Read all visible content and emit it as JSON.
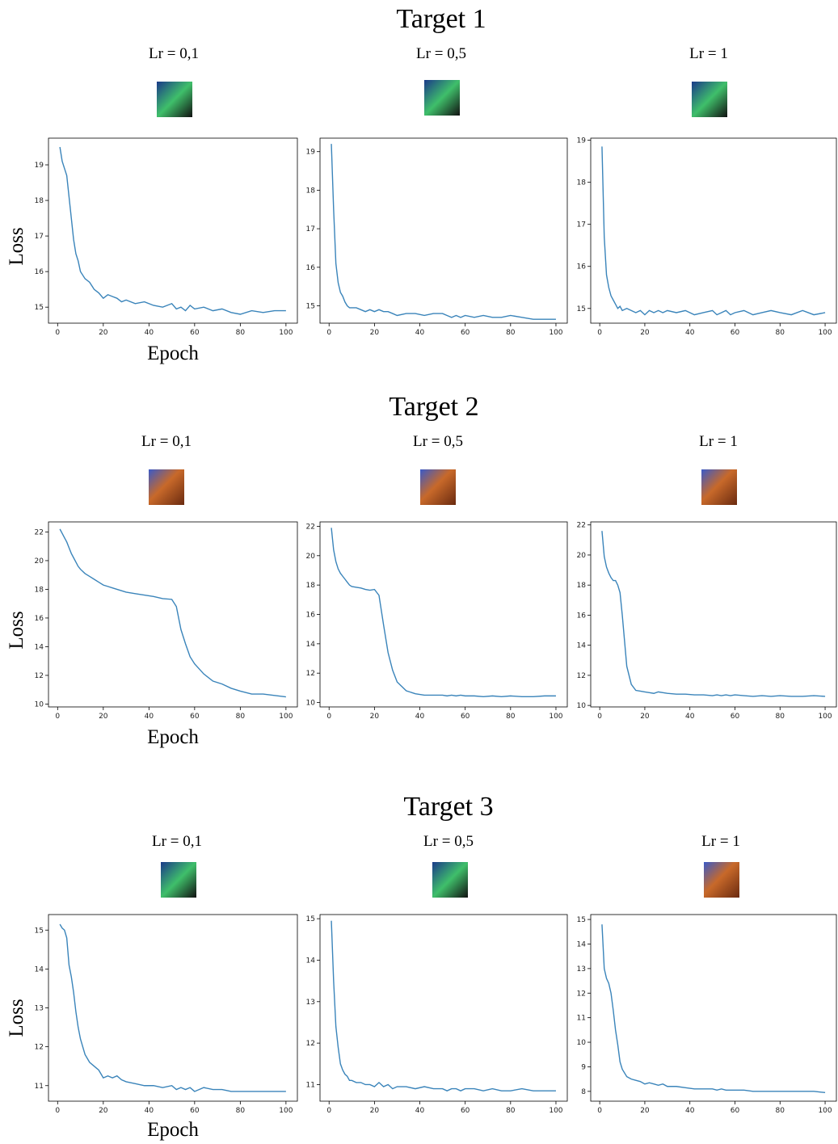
{
  "targets": [
    "Target 1",
    "Target 2",
    "Target 3"
  ],
  "chart_data": [
    {
      "type": "line",
      "title": "Lr = 0,1",
      "xlabel": "Epoch",
      "ylabel": "Loss",
      "xlim": [
        -4,
        105
      ],
      "xticks": [
        0,
        20,
        40,
        60,
        80,
        100
      ],
      "ylim": [
        14.55,
        19.75
      ],
      "yticks": [
        15,
        16,
        17,
        18,
        19
      ],
      "x": [
        1,
        2,
        3,
        4,
        5,
        6,
        7,
        8,
        9,
        10,
        12,
        14,
        16,
        18,
        20,
        22,
        24,
        26,
        28,
        30,
        34,
        38,
        42,
        46,
        50,
        52,
        54,
        56,
        58,
        60,
        64,
        68,
        72,
        76,
        80,
        85,
        90,
        95,
        100
      ],
      "series": [
        {
          "color": "#3a84ba",
          "values": [
            19.5,
            19.1,
            18.9,
            18.7,
            18.1,
            17.5,
            16.9,
            16.5,
            16.3,
            16.0,
            15.8,
            15.7,
            15.5,
            15.4,
            15.25,
            15.35,
            15.3,
            15.25,
            15.15,
            15.2,
            15.1,
            15.15,
            15.05,
            15.0,
            15.1,
            14.95,
            15.0,
            14.9,
            15.05,
            14.95,
            15.0,
            14.9,
            14.95,
            14.85,
            14.8,
            14.9,
            14.85,
            14.9,
            14.9
          ]
        }
      ]
    },
    {
      "type": "line",
      "title": "Lr = 0,5",
      "xlim": [
        -4,
        105
      ],
      "xticks": [
        0,
        20,
        40,
        60,
        80,
        100
      ],
      "ylim": [
        14.55,
        19.35
      ],
      "yticks": [
        15,
        16,
        17,
        18,
        19
      ],
      "x": [
        1,
        2,
        3,
        4,
        5,
        6,
        7,
        8,
        9,
        10,
        12,
        14,
        16,
        18,
        20,
        22,
        24,
        26,
        28,
        30,
        34,
        38,
        42,
        46,
        50,
        52,
        54,
        56,
        58,
        60,
        64,
        68,
        72,
        76,
        80,
        85,
        90,
        95,
        100
      ],
      "series": [
        {
          "color": "#3a84ba",
          "values": [
            19.2,
            17.5,
            16.1,
            15.6,
            15.35,
            15.25,
            15.1,
            15.0,
            14.95,
            14.95,
            14.95,
            14.9,
            14.85,
            14.9,
            14.85,
            14.9,
            14.85,
            14.85,
            14.8,
            14.75,
            14.8,
            14.8,
            14.75,
            14.8,
            14.8,
            14.75,
            14.7,
            14.75,
            14.7,
            14.75,
            14.7,
            14.75,
            14.7,
            14.7,
            14.75,
            14.7,
            14.65,
            14.65,
            14.65
          ]
        }
      ]
    },
    {
      "type": "line",
      "title": "Lr = 1",
      "xlim": [
        -4,
        105
      ],
      "xticks": [
        0,
        20,
        40,
        60,
        80,
        100
      ],
      "ylim": [
        14.65,
        19.05
      ],
      "yticks": [
        15,
        16,
        17,
        18,
        19
      ],
      "x": [
        1,
        2,
        3,
        4,
        5,
        6,
        7,
        8,
        9,
        10,
        12,
        14,
        16,
        18,
        20,
        22,
        24,
        26,
        28,
        30,
        34,
        38,
        42,
        46,
        50,
        52,
        54,
        56,
        58,
        60,
        64,
        68,
        72,
        76,
        80,
        85,
        90,
        95,
        100
      ],
      "series": [
        {
          "color": "#3a84ba",
          "values": [
            18.85,
            16.7,
            15.8,
            15.5,
            15.3,
            15.2,
            15.1,
            15.0,
            15.05,
            14.95,
            15.0,
            14.95,
            14.9,
            14.95,
            14.85,
            14.95,
            14.9,
            14.95,
            14.9,
            14.95,
            14.9,
            14.95,
            14.85,
            14.9,
            14.95,
            14.85,
            14.9,
            14.95,
            14.85,
            14.9,
            14.95,
            14.85,
            14.9,
            14.95,
            14.9,
            14.85,
            14.95,
            14.85,
            14.9
          ]
        }
      ]
    },
    {
      "type": "line",
      "title": "Lr = 0,1",
      "xlabel": "Epoch",
      "ylabel": "Loss",
      "xlim": [
        -4,
        105
      ],
      "xticks": [
        0,
        20,
        40,
        60,
        80,
        100
      ],
      "ylim": [
        9.8,
        22.7
      ],
      "yticks": [
        10,
        12,
        14,
        16,
        18,
        20,
        22
      ],
      "x": [
        1,
        2,
        3,
        4,
        5,
        6,
        7,
        8,
        9,
        10,
        12,
        14,
        16,
        18,
        20,
        22,
        24,
        26,
        28,
        30,
        34,
        38,
        42,
        46,
        50,
        52,
        54,
        56,
        58,
        60,
        64,
        68,
        72,
        76,
        80,
        85,
        90,
        95,
        100
      ],
      "series": [
        {
          "color": "#3a84ba",
          "values": [
            22.2,
            21.9,
            21.6,
            21.3,
            20.9,
            20.5,
            20.2,
            19.9,
            19.6,
            19.4,
            19.1,
            18.9,
            18.7,
            18.5,
            18.3,
            18.2,
            18.1,
            18.0,
            17.9,
            17.8,
            17.7,
            17.6,
            17.5,
            17.35,
            17.3,
            16.8,
            15.2,
            14.2,
            13.3,
            12.8,
            12.1,
            11.6,
            11.4,
            11.1,
            10.9,
            10.7,
            10.7,
            10.6,
            10.5
          ]
        }
      ]
    },
    {
      "type": "line",
      "title": "Lr = 0,5",
      "xlim": [
        -4,
        105
      ],
      "xticks": [
        0,
        20,
        40,
        60,
        80,
        100
      ],
      "ylim": [
        9.7,
        22.3
      ],
      "yticks": [
        10,
        12,
        14,
        16,
        18,
        20,
        22
      ],
      "x": [
        1,
        2,
        3,
        4,
        5,
        6,
        7,
        8,
        9,
        10,
        12,
        14,
        16,
        18,
        20,
        22,
        24,
        26,
        28,
        30,
        34,
        38,
        42,
        46,
        50,
        52,
        54,
        56,
        58,
        60,
        64,
        68,
        72,
        76,
        80,
        85,
        90,
        95,
        100
      ],
      "series": [
        {
          "color": "#3a84ba",
          "values": [
            21.9,
            20.4,
            19.6,
            19.1,
            18.8,
            18.6,
            18.4,
            18.2,
            18.0,
            17.9,
            17.85,
            17.8,
            17.7,
            17.65,
            17.7,
            17.3,
            15.3,
            13.4,
            12.2,
            11.4,
            10.8,
            10.6,
            10.5,
            10.5,
            10.5,
            10.45,
            10.5,
            10.45,
            10.5,
            10.45,
            10.45,
            10.4,
            10.45,
            10.4,
            10.45,
            10.4,
            10.4,
            10.45,
            10.45
          ]
        }
      ]
    },
    {
      "type": "line",
      "title": "Lr = 1",
      "xlim": [
        -4,
        105
      ],
      "xticks": [
        0,
        20,
        40,
        60,
        80,
        100
      ],
      "ylim": [
        9.9,
        22.2
      ],
      "yticks": [
        10,
        12,
        14,
        16,
        18,
        20,
        22
      ],
      "x": [
        1,
        2,
        3,
        4,
        5,
        6,
        7,
        8,
        9,
        10,
        12,
        14,
        16,
        18,
        20,
        22,
        24,
        26,
        28,
        30,
        34,
        38,
        42,
        46,
        50,
        52,
        54,
        56,
        58,
        60,
        64,
        68,
        72,
        76,
        80,
        85,
        90,
        95,
        100
      ],
      "series": [
        {
          "color": "#3a84ba",
          "values": [
            21.6,
            19.9,
            19.2,
            18.8,
            18.5,
            18.3,
            18.3,
            18.0,
            17.5,
            16.0,
            12.6,
            11.4,
            11.0,
            10.95,
            10.9,
            10.85,
            10.8,
            10.9,
            10.85,
            10.8,
            10.75,
            10.75,
            10.7,
            10.7,
            10.65,
            10.7,
            10.65,
            10.7,
            10.65,
            10.7,
            10.65,
            10.6,
            10.65,
            10.6,
            10.65,
            10.6,
            10.6,
            10.65,
            10.6
          ]
        }
      ]
    },
    {
      "type": "line",
      "title": "Lr = 0,1",
      "xlabel": "Epoch",
      "ylabel": "Loss",
      "xlim": [
        -4,
        105
      ],
      "xticks": [
        0,
        20,
        40,
        60,
        80,
        100
      ],
      "ylim": [
        10.6,
        15.4
      ],
      "yticks": [
        11,
        12,
        13,
        14,
        15
      ],
      "x": [
        1,
        2,
        3,
        4,
        5,
        6,
        7,
        8,
        9,
        10,
        12,
        14,
        16,
        18,
        20,
        22,
        24,
        26,
        28,
        30,
        34,
        38,
        42,
        46,
        50,
        52,
        54,
        56,
        58,
        60,
        64,
        68,
        72,
        76,
        80,
        85,
        90,
        95,
        100
      ],
      "series": [
        {
          "color": "#3a84ba",
          "values": [
            15.15,
            15.05,
            15.0,
            14.8,
            14.1,
            13.8,
            13.4,
            12.9,
            12.5,
            12.2,
            11.8,
            11.6,
            11.5,
            11.4,
            11.2,
            11.25,
            11.2,
            11.25,
            11.15,
            11.1,
            11.05,
            11.0,
            11.0,
            10.95,
            11.0,
            10.9,
            10.95,
            10.9,
            10.95,
            10.85,
            10.95,
            10.9,
            10.9,
            10.85,
            10.85,
            10.85,
            10.85,
            10.85,
            10.85
          ]
        }
      ]
    },
    {
      "type": "line",
      "title": "Lr = 0,5",
      "xlim": [
        -4,
        105
      ],
      "xticks": [
        0,
        20,
        40,
        60,
        80,
        100
      ],
      "ylim": [
        10.6,
        15.1
      ],
      "yticks": [
        11,
        12,
        13,
        14,
        15
      ],
      "x": [
        1,
        2,
        3,
        4,
        5,
        6,
        7,
        8,
        9,
        10,
        12,
        14,
        16,
        18,
        20,
        22,
        24,
        26,
        28,
        30,
        34,
        38,
        42,
        46,
        50,
        52,
        54,
        56,
        58,
        60,
        64,
        68,
        72,
        76,
        80,
        85,
        90,
        95,
        100
      ],
      "series": [
        {
          "color": "#3a84ba",
          "values": [
            14.95,
            13.5,
            12.4,
            11.9,
            11.5,
            11.35,
            11.25,
            11.2,
            11.1,
            11.1,
            11.05,
            11.05,
            11.0,
            11.0,
            10.95,
            11.05,
            10.95,
            11.0,
            10.9,
            10.95,
            10.95,
            10.9,
            10.95,
            10.9,
            10.9,
            10.85,
            10.9,
            10.9,
            10.85,
            10.9,
            10.9,
            10.85,
            10.9,
            10.85,
            10.85,
            10.9,
            10.85,
            10.85,
            10.85
          ]
        }
      ]
    },
    {
      "type": "line",
      "title": "Lr = 1",
      "xlim": [
        -4,
        105
      ],
      "xticks": [
        0,
        20,
        40,
        60,
        80,
        100
      ],
      "ylim": [
        7.6,
        15.2
      ],
      "yticks": [
        8,
        9,
        10,
        11,
        12,
        13,
        14,
        15
      ],
      "x": [
        1,
        2,
        3,
        4,
        5,
        6,
        7,
        8,
        9,
        10,
        12,
        14,
        16,
        18,
        20,
        22,
        24,
        26,
        28,
        30,
        34,
        38,
        42,
        46,
        50,
        52,
        54,
        56,
        58,
        60,
        64,
        68,
        72,
        76,
        80,
        85,
        90,
        95,
        100
      ],
      "series": [
        {
          "color": "#3a84ba",
          "values": [
            14.8,
            13.0,
            12.6,
            12.4,
            12.0,
            11.3,
            10.5,
            9.9,
            9.2,
            8.9,
            8.6,
            8.5,
            8.45,
            8.4,
            8.3,
            8.35,
            8.3,
            8.25,
            8.3,
            8.2,
            8.2,
            8.15,
            8.1,
            8.1,
            8.1,
            8.05,
            8.1,
            8.05,
            8.05,
            8.05,
            8.05,
            8.0,
            8.0,
            8.0,
            8.0,
            8.0,
            8.0,
            8.0,
            7.95
          ]
        }
      ]
    }
  ]
}
